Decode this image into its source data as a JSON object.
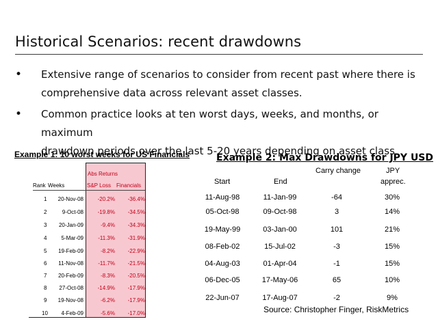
{
  "title": "Historical Scenarios: recent drawdowns",
  "bullets": [
    {
      "line1": "Extensive range of scenarios to consider from recent past where there is",
      "line2": "comprehensive data across relevant asset classes."
    },
    {
      "line1": "Common practice looks at ten worst days, weeks, and months, or maximum",
      "line2": "drawdown periods over the last 5-20 years depending on asset class"
    }
  ],
  "example1": {
    "title": "Example 1: 10 worst weeks for US Financials",
    "group_header": "Abs Returns",
    "headers": {
      "rank": "Rank",
      "weeks": "Weeks",
      "sp_loss": "S&P Loss",
      "financials": "Financials"
    },
    "rows": [
      {
        "rank": "1",
        "week": "20-Nov-08",
        "sp_loss": "-20.2%",
        "financials": "-36.4%"
      },
      {
        "rank": "2",
        "week": "9-Oct-08",
        "sp_loss": "-19.8%",
        "financials": "-34.5%"
      },
      {
        "rank": "3",
        "week": "20-Jan-09",
        "sp_loss": "-9.4%",
        "financials": "-34.3%"
      },
      {
        "rank": "4",
        "week": "5-Mar-09",
        "sp_loss": "-11.3%",
        "financials": "-31.9%"
      },
      {
        "rank": "5",
        "week": "19-Feb-09",
        "sp_loss": "-8.2%",
        "financials": "-22.9%"
      },
      {
        "rank": "6",
        "week": "11-Nov-08",
        "sp_loss": "-11.7%",
        "financials": "-21.5%"
      },
      {
        "rank": "7",
        "week": "20-Feb-09",
        "sp_loss": "-8.3%",
        "financials": "-20.5%"
      },
      {
        "rank": "8",
        "week": "27-Oct-08",
        "sp_loss": "-14.9%",
        "financials": "-17.9%"
      },
      {
        "rank": "9",
        "week": "19-Nov-08",
        "sp_loss": "-6.2%",
        "financials": "-17.9%"
      },
      {
        "rank": "10",
        "week": "4-Feb-09",
        "sp_loss": "-5.6%",
        "financials": "-17.0%"
      }
    ]
  },
  "example2": {
    "title": "Example 2: Max Drawdowns for JPY USD",
    "headers": {
      "start": "Start",
      "end": "End",
      "carry": "Carry change",
      "jpy_line1": "JPY",
      "jpy_line2": "apprec."
    },
    "rows": [
      {
        "start": "11-Aug-98",
        "end": "11-Jan-99",
        "carry": "-64",
        "jpy": "30%"
      },
      {
        "start": "05-Oct-98",
        "end": "09-Oct-98",
        "carry": "3",
        "jpy": "14%"
      },
      {
        "start": "19-May-99",
        "end": "03-Jan-00",
        "carry": "101",
        "jpy": "21%"
      },
      {
        "start": "08-Feb-02",
        "end": "15-Jul-02",
        "carry": "-3",
        "jpy": "15%"
      },
      {
        "start": "04-Aug-03",
        "end": "01-Apr-04",
        "carry": "-1",
        "jpy": "15%"
      },
      {
        "start": "06-Dec-05",
        "end": "17-May-06",
        "carry": "65",
        "jpy": "10%"
      },
      {
        "start": "22-Jun-07",
        "end": "17-Aug-07",
        "carry": "-2",
        "jpy": "9%"
      }
    ],
    "source": "Source: Christopher Finger, RiskMetrics"
  }
}
